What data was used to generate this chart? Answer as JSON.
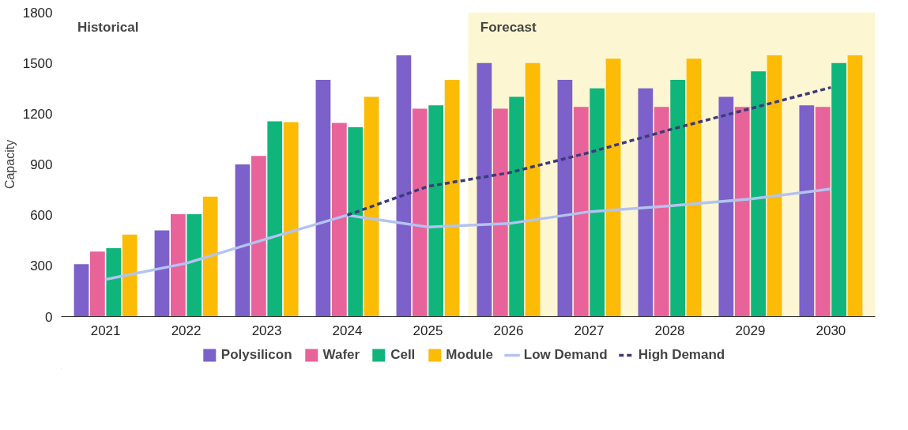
{
  "chart_data": {
    "type": "bar",
    "ylabel": "Capacity",
    "categories": [
      "2021",
      "2022",
      "2023",
      "2024",
      "2025",
      "2026",
      "2027",
      "2028",
      "2029",
      "2030"
    ],
    "ylim": [
      0,
      1800
    ],
    "yticks": [
      0,
      300,
      600,
      900,
      1200,
      1500,
      1800
    ],
    "grid": false,
    "legend": "bottom",
    "series": [
      {
        "name": "Polysilicon",
        "color": "#7b61c9",
        "values": [
          310,
          510,
          900,
          1400,
          1545,
          1500,
          1400,
          1350,
          1300,
          1250
        ]
      },
      {
        "name": "Wafer",
        "color": "#e8639a",
        "values": [
          385,
          605,
          950,
          1145,
          1230,
          1230,
          1240,
          1240,
          1240,
          1240
        ]
      },
      {
        "name": "Cell",
        "color": "#0fb57a",
        "values": [
          405,
          605,
          1155,
          1120,
          1250,
          1300,
          1350,
          1400,
          1450,
          1500
        ]
      },
      {
        "name": "Module",
        "color": "#fcbc05",
        "values": [
          485,
          710,
          1150,
          1300,
          1400,
          1500,
          1525,
          1525,
          1545,
          1545
        ]
      },
      {
        "name": "Low Demand",
        "type": "line",
        "line_style": "solid",
        "color": "#b3c3f2",
        "values": [
          220,
          315,
          460,
          600,
          530,
          550,
          620,
          655,
          695,
          755
        ]
      },
      {
        "name": "High Demand",
        "type": "line",
        "line_style": "dashed",
        "color": "#3d3a7a",
        "values": [
          null,
          null,
          null,
          600,
          770,
          850,
          970,
          1105,
          1230,
          1355
        ]
      }
    ],
    "bands": [
      {
        "axis": "x",
        "from": "2026",
        "to": "2030",
        "label": "Forecast",
        "color": "#fdf6d3"
      }
    ],
    "annotations": [
      "Historical"
    ]
  }
}
